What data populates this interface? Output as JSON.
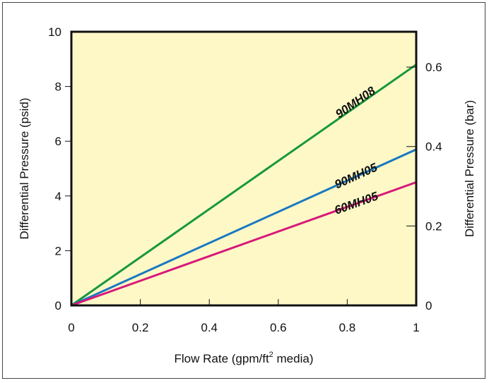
{
  "chart_data": {
    "type": "line",
    "title": "",
    "xlabel": "Flow Rate (gpm/ft",
    "xlabel_sup": "2",
    "xlabel_tail": " media)",
    "ylabel": "Differential Pressure (psid)",
    "ylabel_right": "Differential Pressure (bar)",
    "xlim": [
      0,
      1
    ],
    "ylim": [
      0,
      10
    ],
    "ylim_right": [
      0,
      0.689
    ],
    "x_ticks": [
      0,
      0.2,
      0.4,
      0.6,
      0.8,
      1
    ],
    "x_tick_labels": [
      "0",
      "0.2",
      "0.4",
      "0.6",
      "0.8",
      "1"
    ],
    "y_ticks": [
      0,
      2,
      4,
      6,
      8,
      10
    ],
    "y_tick_labels": [
      "0",
      "2",
      "4",
      "6",
      "8",
      "10"
    ],
    "y_right_ticks": [
      0,
      0.2,
      0.4,
      0.6
    ],
    "y_right_tick_labels": [
      "0",
      "0.2",
      "0.4",
      "0.6"
    ],
    "grid": false,
    "background_color": "#fdf8c6",
    "series": [
      {
        "name": "90MH08",
        "color": "#17973d",
        "x": [
          0,
          1
        ],
        "y": [
          0,
          8.8
        ]
      },
      {
        "name": "90MH05",
        "color": "#1a78c2",
        "x": [
          0,
          1
        ],
        "y": [
          0,
          5.7
        ]
      },
      {
        "name": "60MH05",
        "color": "#d8187a",
        "x": [
          0,
          1
        ],
        "y": [
          0,
          4.5
        ]
      }
    ],
    "series_label_positions": [
      {
        "name": "90MH08",
        "x": 0.83,
        "y": 7.3
      },
      {
        "name": "90MH05",
        "x": 0.83,
        "y": 4.6
      },
      {
        "name": "60MH05",
        "x": 0.83,
        "y": 3.6
      }
    ]
  }
}
